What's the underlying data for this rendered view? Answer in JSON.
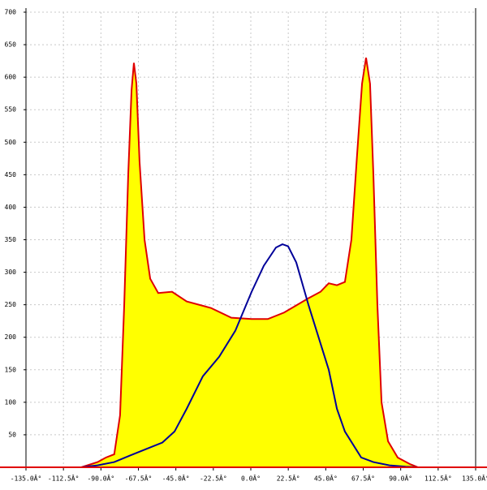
{
  "chart_data": {
    "type": "area",
    "xlim": [
      -135,
      135
    ],
    "ylim": [
      0,
      700
    ],
    "xticks": [
      {
        "value": -135,
        "label": "-135.0Â°"
      },
      {
        "value": -112.5,
        "label": "-112.5Â°"
      },
      {
        "value": -90,
        "label": "-90.0Â°"
      },
      {
        "value": -67.5,
        "label": "-67.5Â°"
      },
      {
        "value": -45,
        "label": "-45.0Â°"
      },
      {
        "value": -22.5,
        "label": "-22.5Â°"
      },
      {
        "value": 0,
        "label": "0.0Â°"
      },
      {
        "value": 22.5,
        "label": "22.5Â°"
      },
      {
        "value": 45,
        "label": "45.0Â°"
      },
      {
        "value": 67.5,
        "label": "67.5Â°"
      },
      {
        "value": 90,
        "label": "90.0Â°"
      },
      {
        "value": 112.5,
        "label": "112.5Â°"
      },
      {
        "value": 135,
        "label": "135.0Â°"
      }
    ],
    "yticks": [
      50,
      100,
      150,
      200,
      250,
      300,
      350,
      400,
      450,
      500,
      550,
      600,
      650,
      700
    ],
    "grid": true,
    "series": [
      {
        "type": "area",
        "color": "#e00000",
        "fill": "#ffff00",
        "x": [
          -101.8,
          -92,
          -87,
          -82,
          -78.5,
          -76,
          -73.6,
          -71.6,
          -70.2,
          -68.7,
          -66.8,
          -63.8,
          -60.4,
          -55.6,
          -47.3,
          -38.5,
          -23.9,
          -11.7,
          0.5,
          10.2,
          20,
          34.6,
          41.9,
          46.8,
          51.7,
          56.5,
          60.4,
          63.8,
          66.8,
          69.2,
          71.6,
          73.6,
          76,
          78.5,
          82.4,
          88.2,
          95.5,
          100.4
        ],
        "values": [
          0,
          8,
          15,
          20,
          80,
          250,
          450,
          580,
          622,
          590,
          470,
          350,
          290,
          268,
          270,
          255,
          245,
          230,
          228,
          228,
          238,
          260,
          270,
          283,
          280,
          285,
          350,
          480,
          590,
          630,
          590,
          450,
          250,
          100,
          40,
          15,
          5,
          0
        ]
      },
      {
        "type": "line",
        "color": "#000099",
        "x": [
          -101.8,
          -92,
          -82,
          -72.6,
          -62.9,
          -53.1,
          -45.8,
          -38.5,
          -28.8,
          -19,
          -9.3,
          0.5,
          7.8,
          15.1,
          19,
          22.4,
          27.3,
          34.6,
          41.9,
          46.8,
          51.7,
          56.5,
          61.4,
          66.3,
          73.6,
          83.3,
          93,
          100.4
        ],
        "values": [
          0,
          3,
          8,
          18,
          28,
          38,
          55,
          90,
          140,
          170,
          210,
          270,
          310,
          338,
          343,
          340,
          315,
          250,
          190,
          150,
          90,
          55,
          35,
          15,
          8,
          3,
          1,
          0
        ]
      }
    ]
  }
}
